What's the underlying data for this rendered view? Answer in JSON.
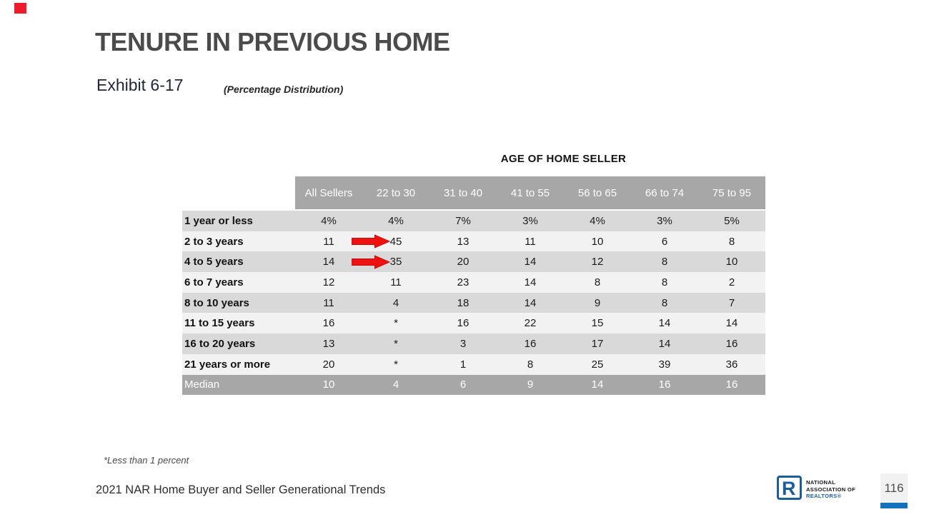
{
  "slide": {
    "title": "TENURE IN PREVIOUS HOME",
    "exhibit": "Exhibit 6-17",
    "subtitle": "(Percentage Distribution)",
    "footnote": "*Less than 1 percent",
    "source_line": "2021 NAR Home Buyer and Seller Generational Trends",
    "page_number": "116"
  },
  "logo": {
    "line1": "NATIONAL",
    "line2": "ASSOCIATION OF",
    "line3": "REALTORS®"
  },
  "colors": {
    "accent_red": "#ec1c2d",
    "arrow_red": "#ee1111",
    "arrow_red_outline": "#c00d0d",
    "header_bg": "#a7a7a7",
    "row_dark": "#d9d9d9",
    "row_light": "#f2f2f2",
    "median_bg": "#a7a7a7",
    "logo_blue": "#1d5d9c",
    "page_tab_blue": "#1273bb"
  },
  "chart_data": {
    "type": "table",
    "title": "AGE OF HOME SELLER",
    "columns": [
      "All Sellers",
      "22 to 30",
      "31 to 40",
      "41 to 55",
      "56 to 65",
      "66 to 74",
      "75 to 95"
    ],
    "rows": [
      {
        "label": "1 year or less",
        "values": [
          "4%",
          "4%",
          "7%",
          "3%",
          "4%",
          "3%",
          "5%"
        ]
      },
      {
        "label": "2 to 3 years",
        "values": [
          "11",
          "45",
          "13",
          "11",
          "10",
          "6",
          "8"
        ],
        "arrow_col": 1
      },
      {
        "label": "4 to 5 years",
        "values": [
          "14",
          "35",
          "20",
          "14",
          "12",
          "8",
          "10"
        ],
        "arrow_col": 1
      },
      {
        "label": "6 to 7 years",
        "values": [
          "12",
          "11",
          "23",
          "14",
          "8",
          "8",
          "2"
        ]
      },
      {
        "label": "8 to 10 years",
        "values": [
          "11",
          "4",
          "18",
          "14",
          "9",
          "8",
          "7"
        ]
      },
      {
        "label": "11 to 15 years",
        "values": [
          "16",
          "*",
          "16",
          "22",
          "15",
          "14",
          "14"
        ]
      },
      {
        "label": "16 to 20 years",
        "values": [
          "13",
          "*",
          "3",
          "16",
          "17",
          "14",
          "16"
        ]
      },
      {
        "label": "21 years or more",
        "values": [
          "20",
          "*",
          "1",
          "8",
          "25",
          "39",
          "36"
        ]
      },
      {
        "label": "Median",
        "values": [
          "10",
          "4",
          "6",
          "9",
          "14",
          "16",
          "16"
        ],
        "is_median": true
      }
    ],
    "highlights": [
      {
        "row": "2 to 3 years",
        "column": "22 to 30",
        "value": "45",
        "marker": "red-arrow"
      },
      {
        "row": "4 to 5 years",
        "column": "22 to 30",
        "value": "35",
        "marker": "red-arrow"
      }
    ],
    "footnote": "*Less than 1 percent",
    "legend_position": "none",
    "grid": false
  }
}
